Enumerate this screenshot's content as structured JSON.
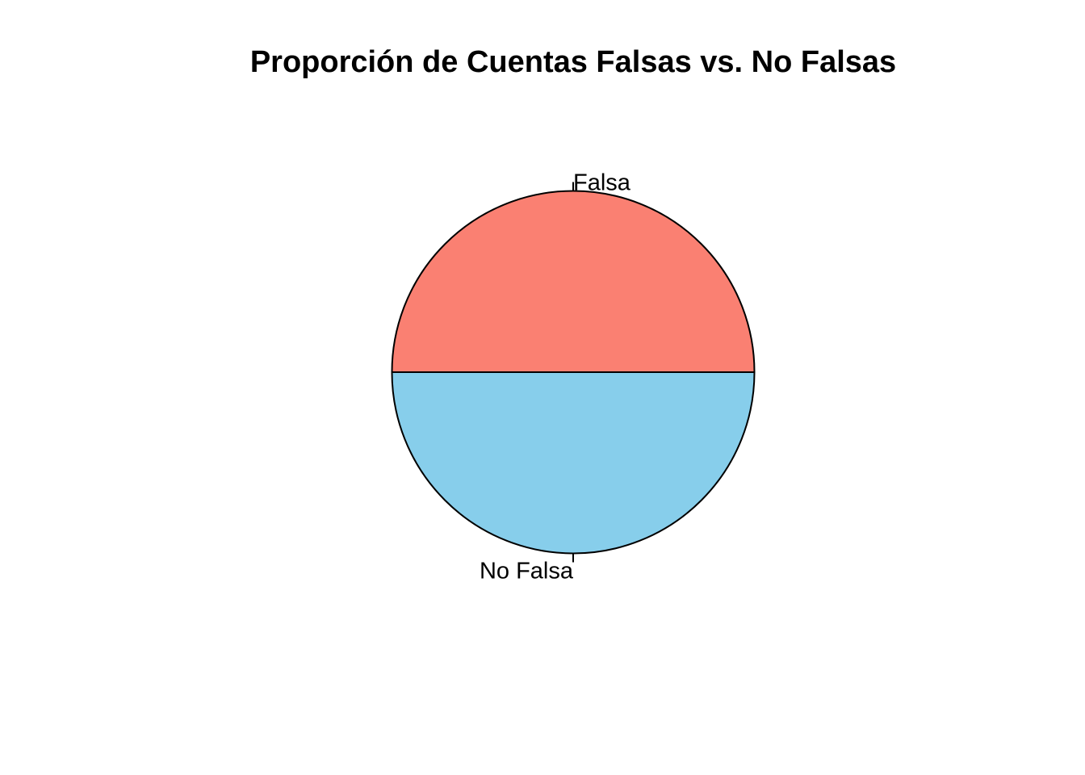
{
  "chart_data": {
    "type": "pie",
    "title": "Proporción de Cuentas Falsas vs. No Falsas",
    "slices": [
      {
        "label": "Falsa",
        "value": 0.5,
        "color": "#FA8072"
      },
      {
        "label": "No Falsa",
        "value": 0.5,
        "color": "#87CEEB"
      }
    ],
    "start": "right (3 o'clock)",
    "direction": "counterclockwise",
    "legend": "none",
    "border_color": "#000000"
  }
}
